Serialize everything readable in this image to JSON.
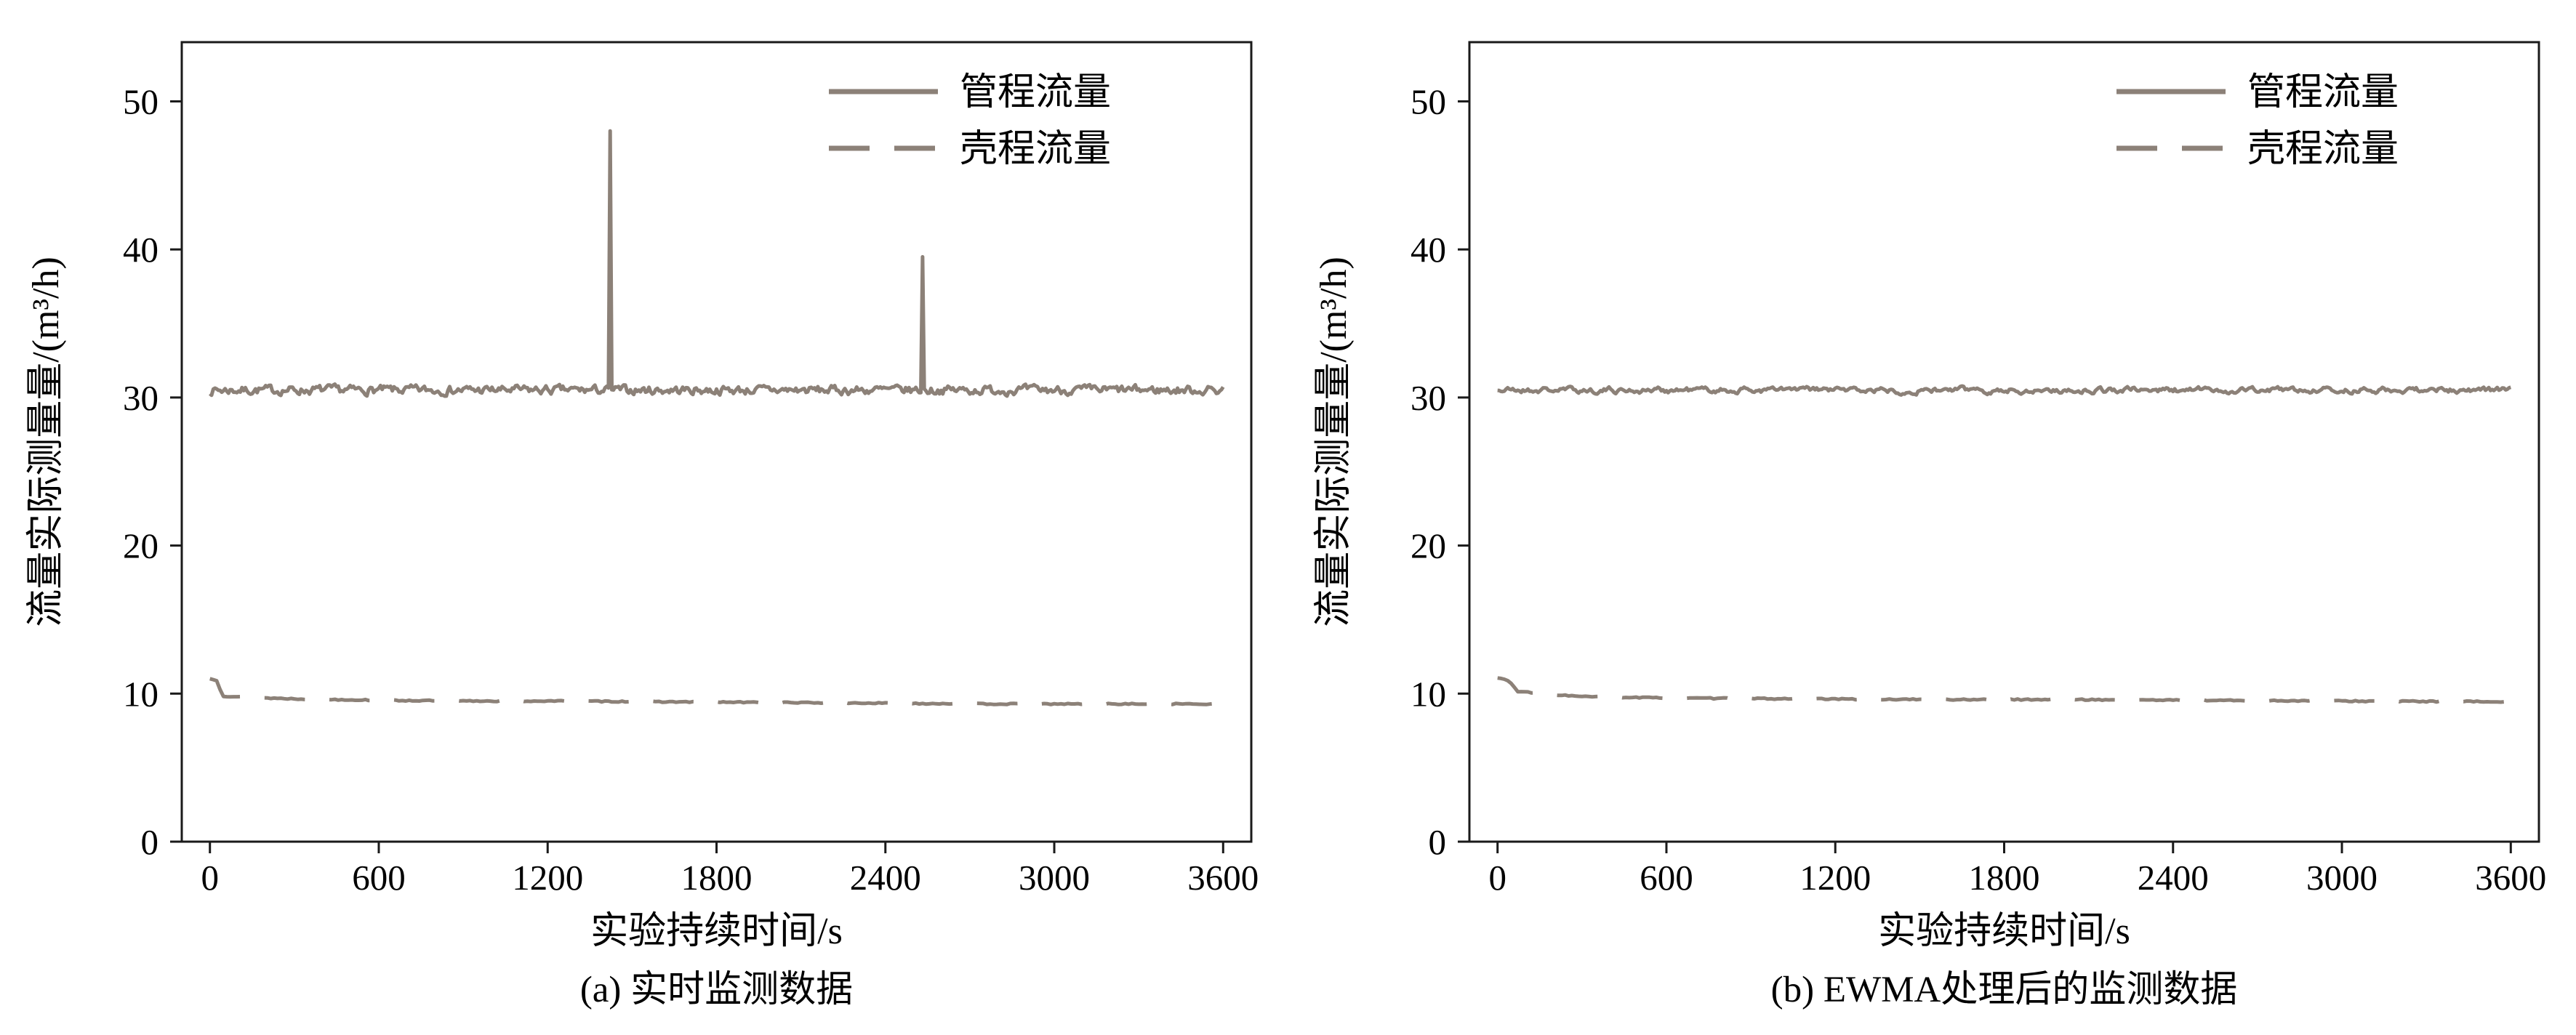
{
  "figure": {
    "background": "#ffffff",
    "line_color": "#8c8178",
    "axis_color": "#1a1a1a",
    "text_color": "#000000"
  },
  "chart_data": [
    {
      "id": "a",
      "type": "line",
      "caption": "(a) 实时监测数据",
      "xlabel": "实验持续时间/s",
      "ylabel": "流量实际测量量/(m³/h)",
      "xlim": [
        -100,
        3700
      ],
      "ylim": [
        0,
        54
      ],
      "xticks": [
        0,
        600,
        1200,
        1800,
        2400,
        3000,
        3600
      ],
      "yticks": [
        0,
        10,
        20,
        30,
        40,
        50
      ],
      "grid": false,
      "legend": {
        "position": "top-right",
        "entries": [
          "管程流量",
          "壳程流量"
        ]
      },
      "series": [
        {
          "name": "管程流量",
          "style": "solid",
          "baseline": 30.5,
          "noise_amplitude": 0.25,
          "noise_persistence": 0.5,
          "spikes": [
            {
              "x": 1420,
              "y": 48.0
            },
            {
              "x": 2530,
              "y": 39.5
            }
          ],
          "x_start": 0,
          "x_end": 3600,
          "sample_step": 6,
          "seed": 7
        },
        {
          "name": "壳程流量",
          "style": "dashed",
          "keypoints": [
            [
              0,
              11.0
            ],
            [
              25,
              10.9
            ],
            [
              45,
              9.85
            ],
            [
              120,
              9.75
            ],
            [
              300,
              9.65
            ],
            [
              600,
              9.55
            ],
            [
              900,
              9.5
            ],
            [
              1200,
              9.5
            ],
            [
              1600,
              9.45
            ],
            [
              2000,
              9.4
            ],
            [
              2400,
              9.35
            ],
            [
              2800,
              9.3
            ],
            [
              3200,
              9.3
            ],
            [
              3600,
              9.3
            ]
          ],
          "noise_amplitude": 0.04,
          "sample_step": 12,
          "seed": 13
        }
      ]
    },
    {
      "id": "b",
      "type": "line",
      "caption": "(b) EWMA处理后的监测数据",
      "xlabel": "实验持续时间/s",
      "ylabel": "流量实际测量量/(m³/h)",
      "xlim": [
        -100,
        3700
      ],
      "ylim": [
        0,
        54
      ],
      "xticks": [
        0,
        600,
        1200,
        1800,
        2400,
        3000,
        3600
      ],
      "yticks": [
        0,
        10,
        20,
        30,
        40,
        50
      ],
      "grid": false,
      "legend": {
        "position": "top-right",
        "entries": [
          "管程流量",
          "壳程流量"
        ]
      },
      "series": [
        {
          "name": "管程流量",
          "style": "solid",
          "baseline": 30.5,
          "noise_amplitude": 0.15,
          "noise_persistence": 0.7,
          "spikes": [],
          "x_start": 0,
          "x_end": 3600,
          "sample_step": 6,
          "seed": 21
        },
        {
          "name": "壳程流量",
          "style": "dashed",
          "keypoints": [
            [
              0,
              11.05
            ],
            [
              40,
              10.9
            ],
            [
              70,
              10.15
            ],
            [
              150,
              10.0
            ],
            [
              300,
              9.8
            ],
            [
              600,
              9.7
            ],
            [
              1000,
              9.65
            ],
            [
              1500,
              9.6
            ],
            [
              2000,
              9.6
            ],
            [
              2500,
              9.55
            ],
            [
              3000,
              9.5
            ],
            [
              3600,
              9.45
            ]
          ],
          "noise_amplitude": 0.04,
          "sample_step": 12,
          "seed": 33
        }
      ]
    }
  ]
}
